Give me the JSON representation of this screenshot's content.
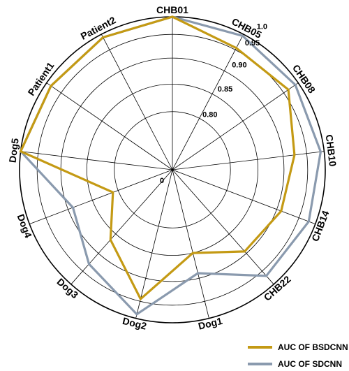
{
  "chart_data": {
    "type": "radar",
    "categories": [
      "CHB01",
      "CHB05",
      "CHB08",
      "CHB10",
      "CHB14",
      "CHB22",
      "Dog1",
      "Dog2",
      "Dog3",
      "Dog4",
      "Dog5",
      "Patient1",
      "Patient2"
    ],
    "r_ticks": [
      "0",
      "0.80",
      "0.85",
      "0.90",
      "0.95",
      "1.0"
    ],
    "series": [
      {
        "name": "AUC OF BSDCNN",
        "color": "#c49a14",
        "values": [
          1.0,
          0.956,
          0.966,
          0.924,
          0.91,
          0.895,
          0.85,
          0.945,
          0.865,
          0.81,
          1.0,
          0.985,
          0.99
        ]
      },
      {
        "name": "AUC OF SDCNN",
        "color": "#8a9aae",
        "values": [
          1.0,
          0.995,
          0.99,
          0.99,
          0.98,
          0.968,
          0.89,
          0.988,
          0.93,
          0.89,
          1.0,
          0.985,
          0.99
        ]
      }
    ]
  }
}
